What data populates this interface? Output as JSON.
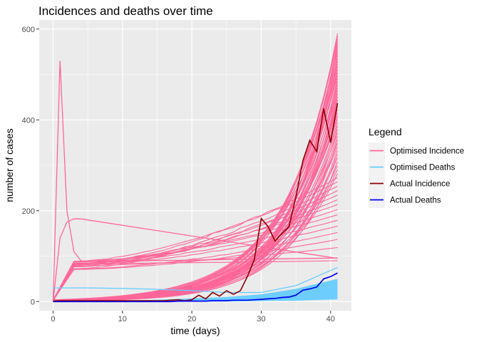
{
  "chart_data": {
    "type": "line",
    "title": "Incidences and deaths over time",
    "xlabel": "time (days)",
    "ylabel": "number of cases",
    "xlim": [
      -2,
      43
    ],
    "ylim": [
      -20,
      620
    ],
    "x_ticks": [
      0,
      10,
      20,
      30,
      40
    ],
    "y_ticks": [
      0,
      200,
      400,
      600
    ],
    "legend": {
      "title": "Legend",
      "position": "right",
      "entries": [
        {
          "label": "Optimised Incidence",
          "color": "#ff6699"
        },
        {
          "label": "Optimised Deaths",
          "color": "#66ccff"
        },
        {
          "label": "Actual Incidence",
          "color": "#8b0000"
        },
        {
          "label": "Actual Deaths",
          "color": "#0000ee"
        }
      ]
    },
    "colors": {
      "panel_background": "#ebebeb",
      "grid": "#ffffff",
      "optimised_incidence": "#ff6699",
      "optimised_deaths": "#66ccff",
      "actual_incidence": "#8b0000",
      "actual_deaths": "#0000ee"
    },
    "series": [
      {
        "name": "Actual Incidence",
        "x": [
          0,
          1,
          2,
          3,
          4,
          5,
          6,
          7,
          8,
          9,
          10,
          11,
          12,
          13,
          14,
          15,
          16,
          17,
          18,
          19,
          20,
          21,
          22,
          23,
          24,
          25,
          26,
          27,
          28,
          29,
          30,
          31,
          32,
          33,
          34,
          35,
          36,
          37,
          38,
          39,
          40,
          41
        ],
        "y": [
          1,
          2,
          2,
          2,
          2,
          2,
          2,
          2,
          2,
          2,
          2,
          2,
          2,
          2,
          2,
          2,
          2,
          3,
          4,
          2,
          4,
          14,
          6,
          20,
          12,
          24,
          16,
          24,
          55,
          92,
          183,
          165,
          133,
          150,
          165,
          230,
          310,
          355,
          330,
          425,
          350,
          437
        ]
      },
      {
        "name": "Actual Deaths",
        "x": [
          0,
          1,
          2,
          3,
          4,
          5,
          6,
          7,
          8,
          9,
          10,
          11,
          12,
          13,
          14,
          15,
          16,
          17,
          18,
          19,
          20,
          21,
          22,
          23,
          24,
          25,
          26,
          27,
          28,
          29,
          30,
          31,
          32,
          33,
          34,
          35,
          36,
          37,
          38,
          39,
          40,
          41
        ],
        "y": [
          0,
          0,
          0,
          0,
          0,
          0,
          0,
          0,
          0,
          0,
          0,
          0,
          0,
          0,
          0,
          0,
          0,
          0,
          1,
          1,
          1,
          1,
          1,
          2,
          2,
          2,
          3,
          3,
          3,
          4,
          5,
          6,
          7,
          9,
          10,
          14,
          25,
          28,
          32,
          50,
          55,
          63
        ]
      },
      {
        "name": "Optimised Deaths",
        "x": [
          0,
          5,
          10,
          15,
          20,
          25,
          30,
          35,
          41
        ],
        "y_band_low": [
          0,
          0,
          0,
          0,
          0,
          0,
          1,
          2,
          5
        ],
        "y_band_high": [
          0,
          1,
          2,
          4,
          7,
          10,
          16,
          28,
          50
        ],
        "y_upper_curve": [
          30,
          30,
          29,
          27,
          24,
          20,
          20,
          35,
          75
        ]
      },
      {
        "name": "Optimised Incidence",
        "x_end": 41,
        "y_end_range": [
          90,
          590
        ],
        "outlier_peaks": [
          {
            "x": [
              0,
              1,
              2,
              3,
              4,
              5,
              41
            ],
            "y": [
              0,
              530,
              200,
              110,
              90,
              88,
              96
            ]
          },
          {
            "x": [
              0,
              1,
              2,
              3,
              4,
              41
            ],
            "y": [
              0,
              140,
              175,
              182,
              182,
              95
            ]
          }
        ]
      }
    ]
  }
}
